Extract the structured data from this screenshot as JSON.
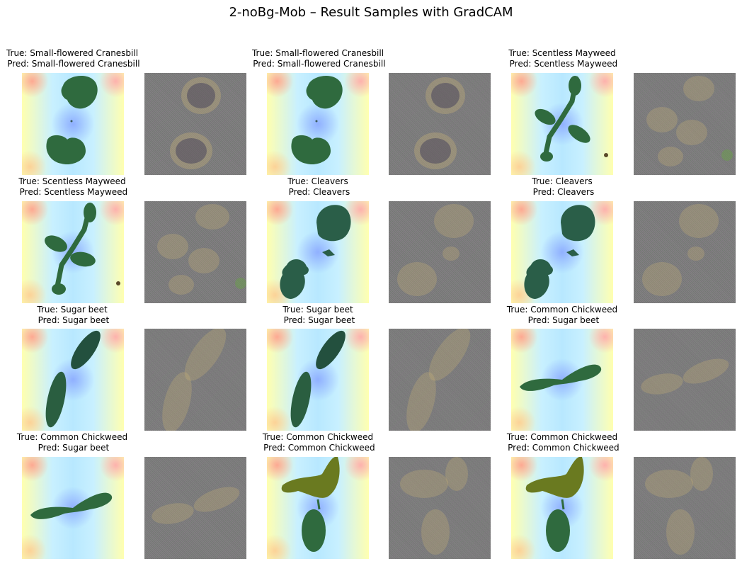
{
  "figure_title": "2-noBg-Mob – Result Samples with GradCAM",
  "samples": [
    {
      "true": "Small-flowered Cranesbill",
      "pred": "Small-flowered Cranesbill",
      "caption": "True: Small-flowered Cranesbill\n Pred: Small-flowered Cranesbill"
    },
    {
      "true": "Small-flowered Cranesbill",
      "pred": "Small-flowered Cranesbill",
      "caption": "True: Small-flowered Cranesbill\n Pred: Small-flowered Cranesbill"
    },
    {
      "true": "Scentless Mayweed",
      "pred": "Scentless Mayweed",
      "caption": "True: Scentless Mayweed\n Pred: Scentless Mayweed"
    },
    {
      "true": "Scentless Mayweed",
      "pred": "Scentless Mayweed",
      "caption": "True: Scentless Mayweed\n Pred: Scentless Mayweed"
    },
    {
      "true": "Cleavers",
      "pred": "Cleavers",
      "caption": "True: Cleavers\n Pred: Cleavers"
    },
    {
      "true": "Cleavers",
      "pred": "Cleavers",
      "caption": "True: Cleavers\n Pred: Cleavers"
    },
    {
      "true": "Sugar beet",
      "pred": "Sugar beet",
      "caption": "True: Sugar beet\n Pred: Sugar beet"
    },
    {
      "true": "Sugar beet",
      "pred": "Sugar beet",
      "caption": "True: Sugar beet\n Pred: Sugar beet"
    },
    {
      "true": "Common Chickweed",
      "pred": "Sugar beet",
      "caption": "True: Common Chickweed\n Pred: Sugar beet"
    },
    {
      "true": "Common Chickweed",
      "pred": "Sugar beet",
      "caption": "True: Common Chickweed\n Pred: Sugar beet"
    },
    {
      "true": "Common Chickweed",
      "pred": "Common Chickweed",
      "caption": "True: Common Chickweed\n Pred: Common Chickweed"
    },
    {
      "true": "Common Chickweed",
      "pred": "Common Chickweed",
      "caption": "True: Common Chickweed\n Pred: Common Chickweed"
    }
  ]
}
